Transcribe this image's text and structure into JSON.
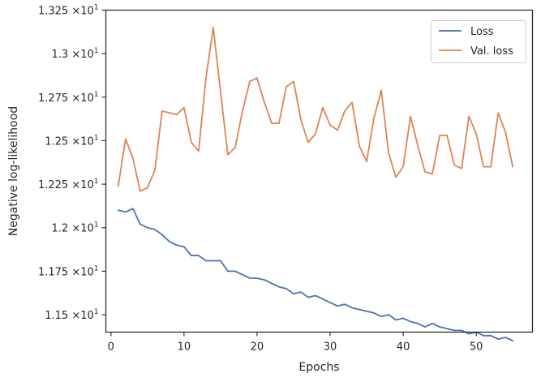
{
  "chart_data": {
    "type": "line",
    "title": "",
    "xlabel": "Epochs",
    "ylabel": "Negative log-likelihood",
    "xlim": [
      -0.7,
      57.7
    ],
    "ylim": [
      11.4,
      13.25
    ],
    "x_ticks": [
      0,
      10,
      20,
      30,
      40,
      50
    ],
    "x_tick_labels": [
      "0",
      "10",
      "20",
      "30",
      "40",
      "50"
    ],
    "y_ticks": [
      11.5,
      11.75,
      12.0,
      12.25,
      12.5,
      12.75,
      13.0,
      13.25
    ],
    "y_tick_labels": [
      {
        "mantissa": "1.15",
        "times": "×10",
        "exp": "1"
      },
      {
        "mantissa": "1.175",
        "times": "×10",
        "exp": "1"
      },
      {
        "mantissa": "1.2",
        "times": "×10",
        "exp": "1"
      },
      {
        "mantissa": "1.225",
        "times": "×10",
        "exp": "1"
      },
      {
        "mantissa": "1.25",
        "times": "×10",
        "exp": "1"
      },
      {
        "mantissa": "1.275",
        "times": "×10",
        "exp": "1"
      },
      {
        "mantissa": "1.3",
        "times": "×10",
        "exp": "1"
      },
      {
        "mantissa": "1.325",
        "times": "×10",
        "exp": "1"
      }
    ],
    "legend_position": "top-right",
    "grid": false,
    "x": [
      1,
      2,
      3,
      4,
      5,
      6,
      7,
      8,
      9,
      10,
      11,
      12,
      13,
      14,
      15,
      16,
      17,
      18,
      19,
      20,
      21,
      22,
      23,
      24,
      25,
      26,
      27,
      28,
      29,
      30,
      31,
      32,
      33,
      34,
      35,
      36,
      37,
      38,
      39,
      40,
      41,
      42,
      43,
      44,
      45,
      46,
      47,
      48,
      49,
      50,
      51,
      52,
      53,
      54,
      55
    ],
    "series": [
      {
        "name": "Loss",
        "color": "#4c72b0",
        "values": [
          12.1,
          12.09,
          12.11,
          12.02,
          12.0,
          11.99,
          11.96,
          11.92,
          11.9,
          11.89,
          11.84,
          11.84,
          11.81,
          11.81,
          11.81,
          11.75,
          11.75,
          11.73,
          11.71,
          11.71,
          11.7,
          11.68,
          11.66,
          11.65,
          11.62,
          11.63,
          11.6,
          11.61,
          11.59,
          11.57,
          11.55,
          11.56,
          11.54,
          11.53,
          11.52,
          11.51,
          11.49,
          11.5,
          11.47,
          11.48,
          11.46,
          11.45,
          11.43,
          11.45,
          11.43,
          11.42,
          11.41,
          11.41,
          11.39,
          11.4,
          11.38,
          11.38,
          11.36,
          11.37,
          11.35
        ]
      },
      {
        "name": "Val. loss",
        "color": "#dd8452",
        "values": [
          12.24,
          12.51,
          12.4,
          12.21,
          12.23,
          12.33,
          12.67,
          12.66,
          12.65,
          12.69,
          12.49,
          12.44,
          12.86,
          13.15,
          12.78,
          12.42,
          12.46,
          12.67,
          12.84,
          12.86,
          12.72,
          12.6,
          12.6,
          12.81,
          12.84,
          12.62,
          12.49,
          12.54,
          12.69,
          12.59,
          12.56,
          12.67,
          12.72,
          12.47,
          12.38,
          12.63,
          12.79,
          12.43,
          12.29,
          12.35,
          12.64,
          12.47,
          12.32,
          12.31,
          12.53,
          12.53,
          12.36,
          12.34,
          12.64,
          12.54,
          12.35,
          12.35,
          12.66,
          12.55,
          12.35
        ]
      }
    ]
  }
}
